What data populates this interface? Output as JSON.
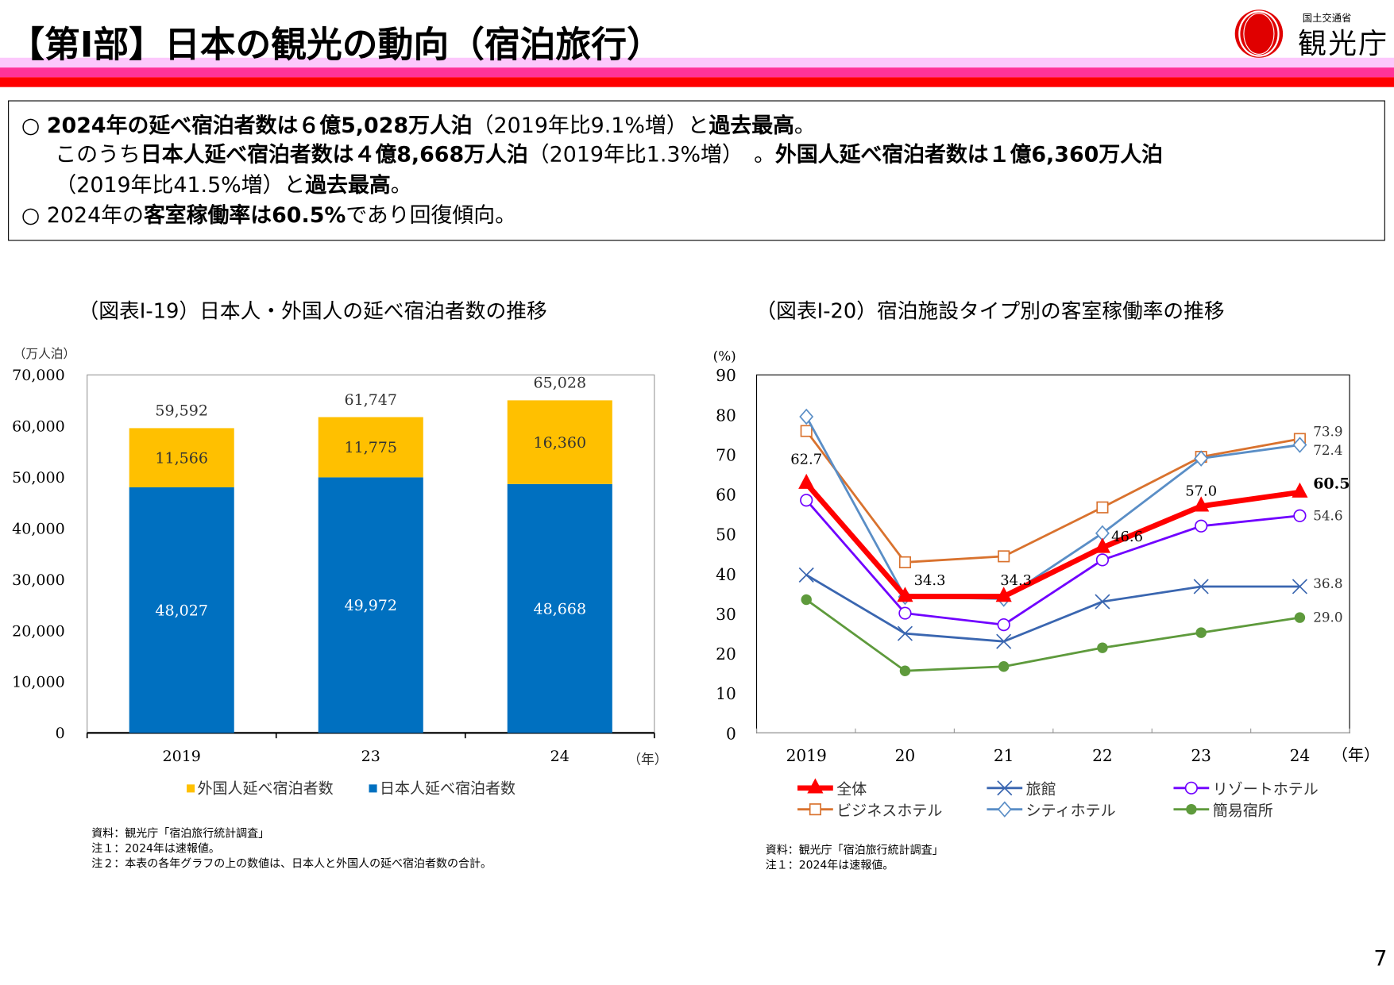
{
  "header": {
    "title": "【第Ⅰ部】日本の観光の動向（宿泊旅行）",
    "logo_ministry": "国土交通省",
    "logo_agency": "観光庁"
  },
  "summary": {
    "lines": [
      [
        {
          "t": "○ ",
          "b": false
        },
        {
          "t": "2024年の延べ宿泊者数は６億5,028万人泊",
          "b": true
        },
        {
          "t": "（2019年比9.1%増）と",
          "b": false
        },
        {
          "t": "過去最高",
          "b": true
        },
        {
          "t": "。",
          "b": false
        }
      ],
      [
        {
          "t": "このうち",
          "b": false
        },
        {
          "t": "日本人延べ宿泊者数は４億8,668万人泊",
          "b": true
        },
        {
          "t": "（2019年比1.3%増）　。",
          "b": false
        },
        {
          "t": "外国人延べ宿泊者数は１億6,360万人泊",
          "b": true
        }
      ],
      [
        {
          "t": "（2019年比41.5%増）と",
          "b": false
        },
        {
          "t": "過去最高",
          "b": true
        },
        {
          "t": "。",
          "b": false
        }
      ],
      [
        {
          "t": "○ 2024年の",
          "b": false
        },
        {
          "t": "客室稼働率は60.5%",
          "b": true
        },
        {
          "t": "であり回復傾向。",
          "b": false
        }
      ]
    ]
  },
  "chart_data": [
    {
      "type": "bar",
      "stacked": true,
      "title": "（図表Ⅰ-19）日本人・外国人の延べ宿泊者数の推移",
      "ylabel": "（万人泊）",
      "xlabel": "（年）",
      "categories": [
        "2019",
        "23",
        "24"
      ],
      "ylim": [
        0,
        70000
      ],
      "yticks": [
        "0",
        "10,000",
        "20,000",
        "30,000",
        "40,000",
        "50,000",
        "60,000",
        "70,000"
      ],
      "series": [
        {
          "name": "日本人延べ宿泊者数",
          "values": [
            48027,
            49972,
            48668
          ],
          "labels": [
            "48,027",
            "49,972",
            "48,668"
          ],
          "color": "#0070c0"
        },
        {
          "name": "外国人延べ宿泊者数",
          "values": [
            11566,
            11775,
            16360
          ],
          "labels": [
            "11,566",
            "11,775",
            "16,360"
          ],
          "color": "#ffc000"
        }
      ],
      "totals": [
        "59,592",
        "61,747",
        "65,028"
      ],
      "legend": [
        "外国人延べ宿泊者数",
        "日本人延べ宿泊者数"
      ],
      "legend_position": "bottom",
      "notes": [
        "資料：観光庁「宿泊旅行統計調査」",
        "注１：2024年は速報値。",
        "注２：本表の各年グラフの上の数値は、日本人と外国人の延べ宿泊者数の合計。"
      ]
    },
    {
      "type": "line",
      "title": "（図表Ⅰ-20）宿泊施設タイプ別の客室稼働率の推移",
      "ylabel": "(%)",
      "xlabel": "（年）",
      "categories": [
        "2019",
        "20",
        "21",
        "22",
        "23",
        "24"
      ],
      "ylim": [
        0,
        90
      ],
      "yticks": [
        "0",
        "10",
        "20",
        "30",
        "40",
        "50",
        "60",
        "70",
        "80",
        "90"
      ],
      "series": [
        {
          "name": "ビジネスホテル",
          "marker": "square",
          "color": "#d9722e",
          "values": [
            75.9,
            42.9,
            44.4,
            56.7,
            69.4,
            73.9
          ]
        },
        {
          "name": "シティホテル",
          "marker": "diamond",
          "color": "#5a8ec6",
          "values": [
            79.5,
            34.2,
            33.7,
            50.2,
            69.0,
            72.4
          ]
        },
        {
          "name": "旅館",
          "marker": "x",
          "color": "#3a66b0",
          "values": [
            39.7,
            25.0,
            23.0,
            33.0,
            36.8,
            36.8
          ]
        },
        {
          "name": "簡易宿所",
          "marker": "dot",
          "color": "#5e9a3c",
          "values": [
            33.5,
            15.6,
            16.7,
            21.4,
            25.2,
            29.0
          ]
        },
        {
          "name": "リゾートホテル",
          "marker": "circle",
          "color": "#7000ff",
          "values": [
            58.5,
            30.1,
            27.2,
            43.5,
            52.0,
            54.6
          ]
        },
        {
          "name": "全体",
          "marker": "triangle",
          "color": "#ff0000",
          "values": [
            62.7,
            34.3,
            34.3,
            46.6,
            57.0,
            60.5
          ]
        }
      ],
      "data_labels": {
        "全体": [
          "62.7",
          "34.3",
          "34.3",
          "46.6",
          "57.0",
          "60.5"
        ],
        "ビジネスホテル_end": "73.9",
        "シティホテル_end": "72.4",
        "リゾートホテル_end": "54.6",
        "旅館_end": "36.8",
        "簡易宿所_end": "29.0"
      },
      "legend": [
        "全体",
        "旅館",
        "リゾートホテル",
        "ビジネスホテル",
        "シティホテル",
        "簡易宿所"
      ],
      "legend_position": "bottom",
      "notes": [
        "資料：観光庁「宿泊旅行統計調査」",
        "注１：2024年は速報値。"
      ]
    }
  ],
  "page_number": "7"
}
